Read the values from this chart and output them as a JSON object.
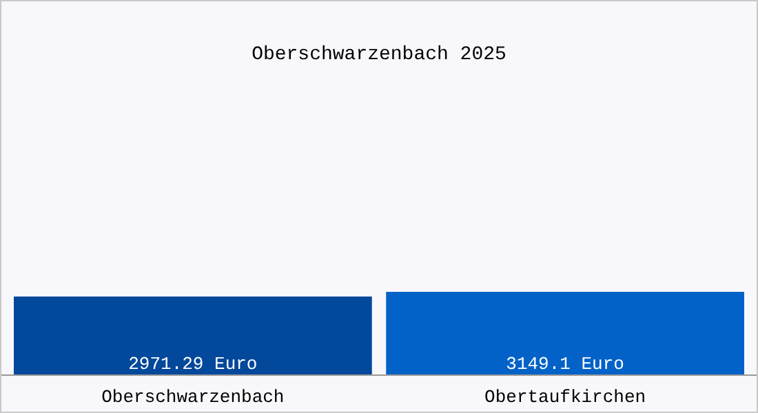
{
  "chart_data": {
    "type": "bar",
    "title": "Oberschwarzenbach 2025",
    "categories": [
      "Oberschwarzenbach",
      "Obertaufkirchen"
    ],
    "values": [
      2971.29,
      3149.1
    ],
    "colors": [
      "#02489b",
      "#0362c8"
    ],
    "value_labels": [
      "2971.29 Euro",
      "3149.1 Euro"
    ]
  }
}
